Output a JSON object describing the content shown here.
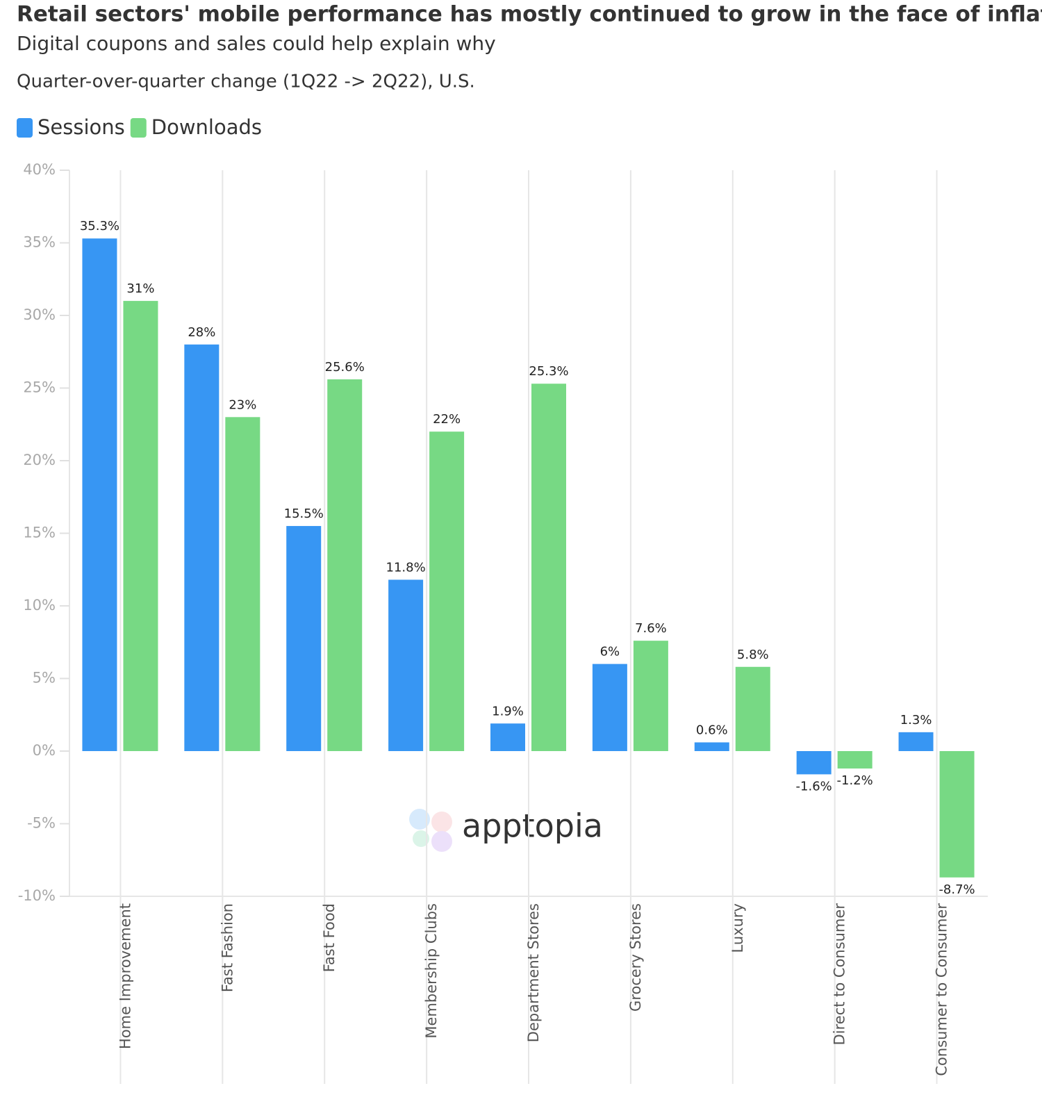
{
  "chart_data": {
    "type": "bar",
    "title": "Retail sectors' mobile performance has mostly continued to grow in the face of inflation",
    "subtitle": "Digital coupons and sales could help explain why",
    "note": "Quarter-over-quarter change (1Q22 -> 2Q22), U.S.",
    "watermark": "apptopia",
    "categories": [
      "Home Improvement",
      "Fast Fashion",
      "Fast Food",
      "Membership Clubs",
      "Department Stores",
      "Grocery Stores",
      "Luxury",
      "Direct to Consumer",
      "Consumer to Consumer"
    ],
    "series": [
      {
        "name": "Sessions",
        "color": "#3796f3",
        "values": [
          35.3,
          28,
          15.5,
          11.8,
          1.9,
          6,
          0.6,
          -1.6,
          1.3
        ],
        "value_labels": [
          "35.3%",
          "28%",
          "15.5%",
          "11.8%",
          "1.9%",
          "6%",
          "0.6%",
          "-1.6%",
          "1.3%"
        ]
      },
      {
        "name": "Downloads",
        "color": "#77d984",
        "values": [
          31,
          23,
          25.6,
          22,
          25.3,
          7.6,
          5.8,
          -1.2,
          -8.7
        ],
        "value_labels": [
          "31%",
          "23%",
          "25.6%",
          "22%",
          "25.3%",
          "7.6%",
          "5.8%",
          "-1.2%",
          "-8.7%"
        ]
      }
    ],
    "ylim": [
      -10,
      40
    ],
    "yticks": [
      {
        "value": -10,
        "label": "-10%"
      },
      {
        "value": -5,
        "label": "-5%"
      },
      {
        "value": 0,
        "label": "0%"
      },
      {
        "value": 5,
        "label": "5%"
      },
      {
        "value": 10,
        "label": "10%"
      },
      {
        "value": 15,
        "label": "15%"
      },
      {
        "value": 20,
        "label": "20%"
      },
      {
        "value": 25,
        "label": "25%"
      },
      {
        "value": 30,
        "label": "30%"
      },
      {
        "value": 35,
        "label": "35%"
      },
      {
        "value": 40,
        "label": "40%"
      }
    ],
    "legend": "top-left"
  }
}
